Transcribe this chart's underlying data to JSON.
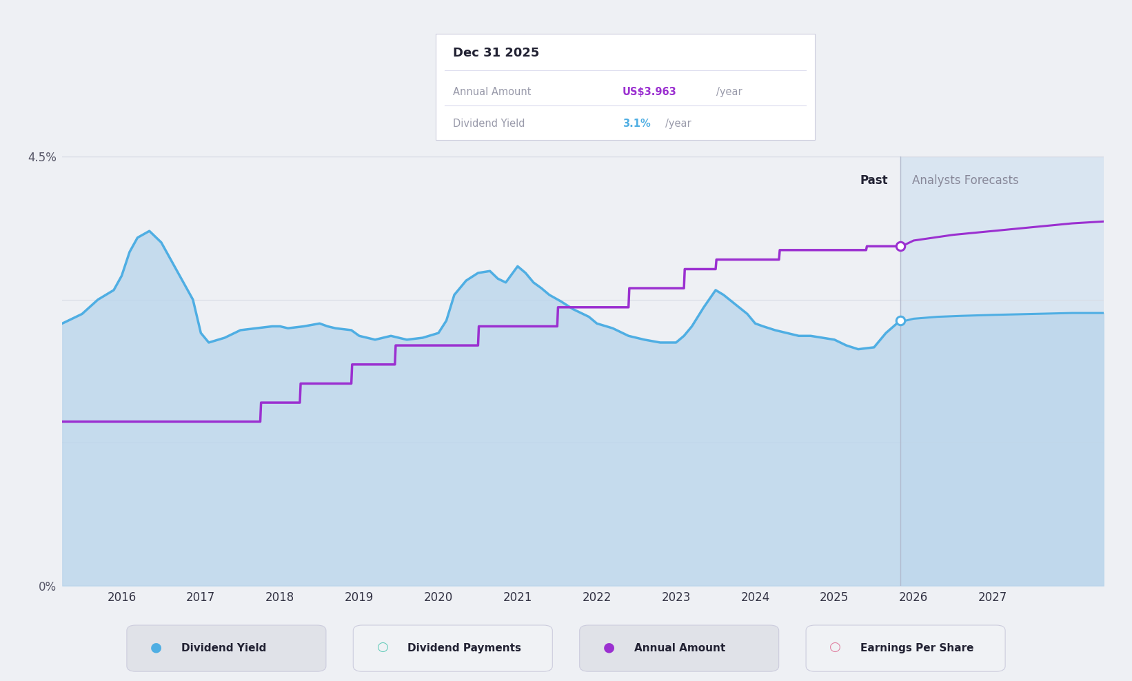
{
  "bg_color": "#eef0f4",
  "plot_bg_color": "#eef0f4",
  "fill_color": "#b8d4eb",
  "fill_alpha": 0.75,
  "dividend_yield_color": "#4faee3",
  "annual_amount_color": "#9b30d0",
  "forecast_bg_color": "#ccdff0",
  "forecast_bg_alpha": 0.6,
  "grid_color": "#d8dce5",
  "ylim": [
    0,
    4.5
  ],
  "xmin": 2015.25,
  "xmax": 2028.4,
  "past_end": 2025.83,
  "xticks": [
    2016,
    2017,
    2018,
    2019,
    2020,
    2021,
    2022,
    2023,
    2024,
    2025,
    2026,
    2027
  ],
  "tooltip_date": "Dec 31 2025",
  "tooltip_annual_label": "Annual Amount",
  "tooltip_annual_value": "US$3.963",
  "tooltip_annual_unit": "/year",
  "tooltip_yield_label": "Dividend Yield",
  "tooltip_yield_value": "3.1%",
  "tooltip_yield_unit": "/year",
  "past_label": "Past",
  "forecast_label": "Analysts Forecasts",
  "dividend_yield_point_x": 2025.83,
  "dividend_yield_point_y": 2.78,
  "annual_amount_point_x": 2025.83,
  "annual_amount_point_y": 3.56,
  "dividend_yield_data_x": [
    2015.25,
    2015.5,
    2015.7,
    2015.9,
    2016.0,
    2016.1,
    2016.2,
    2016.35,
    2016.5,
    2016.7,
    2016.9,
    2017.0,
    2017.1,
    2017.3,
    2017.5,
    2017.7,
    2017.9,
    2018.0,
    2018.1,
    2018.3,
    2018.5,
    2018.6,
    2018.7,
    2018.9,
    2019.0,
    2019.1,
    2019.2,
    2019.3,
    2019.4,
    2019.5,
    2019.6,
    2019.8,
    2020.0,
    2020.1,
    2020.2,
    2020.35,
    2020.5,
    2020.65,
    2020.75,
    2020.85,
    2021.0,
    2021.1,
    2021.2,
    2021.3,
    2021.4,
    2021.55,
    2021.7,
    2021.9,
    2022.0,
    2022.2,
    2022.4,
    2022.6,
    2022.8,
    2023.0,
    2023.1,
    2023.2,
    2023.35,
    2023.5,
    2023.6,
    2023.75,
    2023.9,
    2024.0,
    2024.1,
    2024.25,
    2024.4,
    2024.55,
    2024.7,
    2024.85,
    2025.0,
    2025.15,
    2025.3,
    2025.5,
    2025.65,
    2025.83,
    2025.9,
    2026.0,
    2026.3,
    2026.6,
    2027.0,
    2027.5,
    2028.0,
    2028.4
  ],
  "dividend_yield_data_y": [
    2.75,
    2.85,
    3.0,
    3.1,
    3.25,
    3.5,
    3.65,
    3.72,
    3.6,
    3.3,
    3.0,
    2.65,
    2.55,
    2.6,
    2.68,
    2.7,
    2.72,
    2.72,
    2.7,
    2.72,
    2.75,
    2.72,
    2.7,
    2.68,
    2.62,
    2.6,
    2.58,
    2.6,
    2.62,
    2.6,
    2.58,
    2.6,
    2.65,
    2.78,
    3.05,
    3.2,
    3.28,
    3.3,
    3.22,
    3.18,
    3.35,
    3.28,
    3.18,
    3.12,
    3.05,
    2.98,
    2.9,
    2.82,
    2.75,
    2.7,
    2.62,
    2.58,
    2.55,
    2.55,
    2.62,
    2.72,
    2.92,
    3.1,
    3.05,
    2.95,
    2.85,
    2.75,
    2.72,
    2.68,
    2.65,
    2.62,
    2.62,
    2.6,
    2.58,
    2.52,
    2.48,
    2.5,
    2.65,
    2.78,
    2.78,
    2.8,
    2.82,
    2.83,
    2.84,
    2.85,
    2.86,
    2.86
  ],
  "annual_amount_data_x": [
    2015.25,
    2015.9,
    2016.0,
    2016.9,
    2017.0,
    2017.5,
    2017.75,
    2017.76,
    2017.76,
    2018.25,
    2018.26,
    2018.26,
    2018.9,
    2018.91,
    2018.91,
    2019.45,
    2019.46,
    2019.46,
    2019.9,
    2019.91,
    2019.91,
    2020.5,
    2020.51,
    2020.51,
    2020.9,
    2020.91,
    2020.91,
    2021.5,
    2021.51,
    2021.51,
    2021.9,
    2021.91,
    2021.91,
    2022.4,
    2022.41,
    2022.41,
    2022.9,
    2022.91,
    2022.91,
    2023.1,
    2023.11,
    2023.11,
    2023.5,
    2023.51,
    2023.51,
    2024.3,
    2024.31,
    2024.31,
    2025.4,
    2025.41,
    2025.41,
    2025.83,
    2025.9,
    2026.0,
    2026.5,
    2027.0,
    2027.5,
    2028.0,
    2028.4
  ],
  "annual_amount_data_y": [
    1.72,
    1.72,
    1.72,
    1.72,
    1.72,
    1.72,
    1.72,
    1.92,
    1.92,
    1.92,
    2.12,
    2.12,
    2.12,
    2.32,
    2.32,
    2.32,
    2.52,
    2.52,
    2.52,
    2.52,
    2.52,
    2.52,
    2.72,
    2.72,
    2.72,
    2.72,
    2.72,
    2.72,
    2.92,
    2.92,
    2.92,
    2.92,
    2.92,
    2.92,
    3.12,
    3.12,
    3.12,
    3.12,
    3.12,
    3.12,
    3.32,
    3.32,
    3.32,
    3.42,
    3.42,
    3.42,
    3.52,
    3.52,
    3.52,
    3.56,
    3.56,
    3.56,
    3.58,
    3.62,
    3.68,
    3.72,
    3.76,
    3.8,
    3.82
  ],
  "legend_items": [
    {
      "label": "Dividend Yield",
      "color": "#4faee3",
      "filled": true
    },
    {
      "label": "Dividend Payments",
      "color": "#66ccbb",
      "filled": false
    },
    {
      "label": "Annual Amount",
      "color": "#9b30d0",
      "filled": true
    },
    {
      "label": "Earnings Per Share",
      "color": "#e080a0",
      "filled": false
    }
  ]
}
